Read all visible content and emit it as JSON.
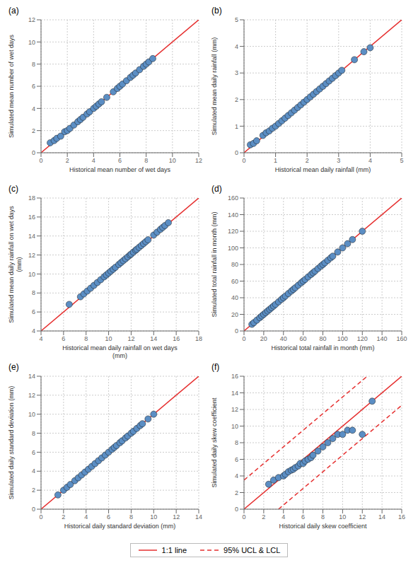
{
  "legend": "bottom",
  "chart_data": [
    {
      "type": "scatter",
      "title": "(a)",
      "xlabel": "Historical mean number of wet days",
      "ylabel": "Simulated mean number of wet days",
      "xlim": [
        0,
        12
      ],
      "ylim": [
        0,
        12
      ],
      "xticks": [
        0,
        2,
        4,
        6,
        8,
        10,
        12
      ],
      "yticks": [
        0,
        2,
        4,
        6,
        8,
        10,
        12
      ],
      "grid": true,
      "series": [
        {
          "type": "line",
          "name": "1:1 line",
          "color": "#e63030",
          "line_style": "solid",
          "x": [
            0,
            12
          ],
          "values": [
            0,
            12
          ]
        },
        {
          "type": "scatter",
          "color": "#5b8ec4",
          "marker": "circle",
          "x": [
            0.7,
            1.0,
            1.2,
            1.5,
            1.8,
            2.0,
            2.2,
            2.5,
            2.8,
            3.0,
            3.2,
            3.5,
            3.7,
            4.0,
            4.2,
            4.4,
            4.6,
            5.0,
            5.5,
            5.8,
            6.0,
            6.2,
            6.5,
            6.8,
            7.0,
            7.2,
            7.5,
            7.8,
            8.0,
            8.2,
            8.5
          ],
          "values": [
            0.9,
            1.1,
            1.3,
            1.5,
            1.9,
            2.0,
            2.2,
            2.5,
            2.8,
            3.0,
            3.2,
            3.5,
            3.7,
            4.0,
            4.2,
            4.4,
            4.6,
            5.0,
            5.5,
            5.8,
            6.0,
            6.2,
            6.5,
            6.8,
            7.0,
            7.2,
            7.5,
            7.8,
            8.0,
            8.2,
            8.5
          ]
        }
      ]
    },
    {
      "type": "scatter",
      "title": "(b)",
      "xlabel": "Historical mean daily rainfall (mm)",
      "ylabel": "Simulated mean daily rainfall (mm)",
      "xlim": [
        0,
        5
      ],
      "ylim": [
        0,
        5
      ],
      "xticks": [
        0,
        1,
        2,
        3,
        4,
        5
      ],
      "yticks": [
        0,
        1,
        2,
        3,
        4,
        5
      ],
      "grid": true,
      "series": [
        {
          "type": "line",
          "name": "1:1 line",
          "color": "#e63030",
          "line_style": "solid",
          "x": [
            0,
            5
          ],
          "values": [
            0,
            5
          ]
        },
        {
          "type": "scatter",
          "color": "#5b8ec4",
          "marker": "circle",
          "x": [
            0.2,
            0.3,
            0.4,
            0.6,
            0.7,
            0.8,
            0.9,
            1.0,
            1.1,
            1.2,
            1.3,
            1.4,
            1.5,
            1.6,
            1.7,
            1.8,
            1.9,
            2.0,
            2.1,
            2.2,
            2.3,
            2.4,
            2.5,
            2.6,
            2.7,
            2.8,
            2.9,
            3.0,
            3.1,
            3.5,
            3.8,
            4.0
          ],
          "values": [
            0.3,
            0.35,
            0.45,
            0.65,
            0.75,
            0.82,
            0.92,
            1.0,
            1.1,
            1.2,
            1.3,
            1.4,
            1.5,
            1.6,
            1.7,
            1.8,
            1.9,
            2.0,
            2.1,
            2.2,
            2.3,
            2.4,
            2.5,
            2.6,
            2.7,
            2.8,
            2.9,
            3.0,
            3.1,
            3.5,
            3.8,
            3.95
          ]
        }
      ]
    },
    {
      "type": "scatter",
      "title": "(c)",
      "xlabel": "Historical mean daily rainfall on wet days\n(mm)",
      "ylabel": "Simulated mean daily rainfall on wet days\n(mm)",
      "xlim": [
        4,
        18
      ],
      "ylim": [
        4,
        18
      ],
      "xticks": [
        4,
        6,
        8,
        10,
        12,
        14,
        16,
        18
      ],
      "yticks": [
        4,
        6,
        8,
        10,
        12,
        14,
        16,
        18
      ],
      "grid": true,
      "series": [
        {
          "type": "line",
          "name": "1:1 line",
          "color": "#e63030",
          "line_style": "solid",
          "x": [
            4,
            18
          ],
          "values": [
            4,
            18
          ]
        },
        {
          "type": "scatter",
          "color": "#5b8ec4",
          "marker": "circle",
          "x": [
            6.5,
            7.5,
            7.8,
            8.1,
            8.4,
            8.7,
            9.0,
            9.3,
            9.6,
            9.8,
            10.0,
            10.2,
            10.4,
            10.6,
            10.9,
            11.1,
            11.3,
            11.5,
            11.7,
            11.9,
            12.0,
            12.2,
            12.4,
            12.5,
            12.7,
            12.9,
            13.1,
            13.3,
            13.5,
            14.0,
            14.3,
            14.6,
            14.8,
            15.0,
            15.3
          ],
          "values": [
            6.8,
            7.6,
            7.9,
            8.2,
            8.5,
            8.8,
            9.1,
            9.4,
            9.7,
            9.9,
            10.1,
            10.3,
            10.5,
            10.7,
            11.0,
            11.2,
            11.4,
            11.6,
            11.8,
            12.0,
            12.1,
            12.3,
            12.5,
            12.6,
            12.8,
            13.0,
            13.2,
            13.4,
            13.6,
            14.1,
            14.4,
            14.7,
            14.9,
            15.1,
            15.4
          ]
        }
      ]
    },
    {
      "type": "scatter",
      "title": "(d)",
      "xlabel": "Historical total rainfall in month (mm)",
      "ylabel": "Simulated total rainfall in month (mm)",
      "xlim": [
        0,
        160
      ],
      "ylim": [
        0,
        160
      ],
      "xticks": [
        0,
        20,
        40,
        60,
        80,
        100,
        120,
        140,
        160
      ],
      "yticks": [
        0,
        20,
        40,
        60,
        80,
        100,
        120,
        140,
        160
      ],
      "grid": true,
      "series": [
        {
          "type": "line",
          "name": "1:1 line",
          "color": "#e63030",
          "line_style": "solid",
          "x": [
            0,
            160
          ],
          "values": [
            0,
            160
          ]
        },
        {
          "type": "scatter",
          "color": "#5b8ec4",
          "marker": "circle",
          "x": [
            8,
            10,
            13,
            16,
            18,
            20,
            22,
            24,
            26,
            28,
            30,
            32,
            35,
            38,
            40,
            42,
            45,
            48,
            50,
            52,
            55,
            58,
            60,
            62,
            65,
            68,
            70,
            72,
            75,
            78,
            80,
            82,
            85,
            88,
            90,
            95,
            100,
            105,
            110,
            120
          ],
          "values": [
            8,
            10,
            13,
            16,
            18,
            20,
            22,
            24,
            26,
            28,
            30,
            32,
            35,
            38,
            40,
            42,
            45,
            48,
            50,
            52,
            55,
            58,
            60,
            62,
            65,
            68,
            70,
            72,
            75,
            78,
            80,
            82,
            85,
            88,
            90,
            95,
            100,
            105,
            110,
            120
          ]
        }
      ]
    },
    {
      "type": "scatter",
      "title": "(e)",
      "xlabel": "Historical daily standard deviation (mm)",
      "ylabel": "Simulated daily standard deviation (mm)",
      "xlim": [
        0,
        14
      ],
      "ylim": [
        0,
        14
      ],
      "xticks": [
        0,
        2,
        4,
        6,
        8,
        10,
        12,
        14
      ],
      "yticks": [
        0,
        2,
        4,
        6,
        8,
        10,
        12,
        14
      ],
      "grid": true,
      "series": [
        {
          "type": "line",
          "name": "1:1 line",
          "color": "#e63030",
          "line_style": "solid",
          "x": [
            0,
            14
          ],
          "values": [
            0,
            14
          ]
        },
        {
          "type": "scatter",
          "color": "#5b8ec4",
          "marker": "circle",
          "x": [
            1.5,
            2.0,
            2.3,
            2.6,
            3.0,
            3.3,
            3.6,
            3.9,
            4.2,
            4.5,
            4.8,
            5.1,
            5.4,
            5.7,
            6.0,
            6.3,
            6.5,
            6.7,
            7.0,
            7.2,
            7.5,
            7.7,
            8.0,
            8.2,
            8.5,
            8.8,
            9.0,
            9.5,
            10.0
          ],
          "values": [
            1.5,
            2.0,
            2.3,
            2.6,
            3.0,
            3.3,
            3.6,
            3.9,
            4.2,
            4.5,
            4.8,
            5.1,
            5.4,
            5.7,
            6.0,
            6.3,
            6.5,
            6.7,
            7.0,
            7.2,
            7.5,
            7.7,
            8.0,
            8.2,
            8.5,
            8.8,
            9.0,
            9.5,
            10.0
          ]
        }
      ]
    },
    {
      "type": "scatter",
      "title": "(f)",
      "xlabel": "Historical daily skew coefficient",
      "ylabel": "Simulated daily skew coefficient",
      "xlim": [
        0,
        16
      ],
      "ylim": [
        0,
        16
      ],
      "xticks": [
        0,
        2,
        4,
        6,
        8,
        10,
        12,
        14,
        16
      ],
      "yticks": [
        0,
        2,
        4,
        6,
        8,
        10,
        12,
        14,
        16
      ],
      "grid": true,
      "series": [
        {
          "type": "line",
          "name": "1:1 line",
          "color": "#e63030",
          "line_style": "solid",
          "x": [
            0,
            16
          ],
          "values": [
            0,
            16
          ]
        },
        {
          "type": "line",
          "name": "95% UCL & LCL",
          "color": "#e63030",
          "line_style": "dashed",
          "x": [
            0,
            12.5,
            null,
            3.5,
            16
          ],
          "values": [
            3.5,
            16,
            null,
            0,
            12.5
          ]
        },
        {
          "type": "scatter",
          "color": "#5b8ec4",
          "marker": "circle",
          "x": [
            2.5,
            3.0,
            3.5,
            4.0,
            4.2,
            4.5,
            4.8,
            5.0,
            5.2,
            5.5,
            5.7,
            6.0,
            6.2,
            6.5,
            6.8,
            7.0,
            7.5,
            8.0,
            8.5,
            9.0,
            9.5,
            10.0,
            10.5,
            11.0,
            12.0,
            13.0
          ],
          "values": [
            3.0,
            3.5,
            3.8,
            4.0,
            4.2,
            4.5,
            4.7,
            4.8,
            5.0,
            5.2,
            5.5,
            5.5,
            5.8,
            6.0,
            6.2,
            6.5,
            7.0,
            7.5,
            8.0,
            8.5,
            9.0,
            9.0,
            9.5,
            9.5,
            9.0,
            13.0
          ]
        }
      ]
    }
  ]
}
